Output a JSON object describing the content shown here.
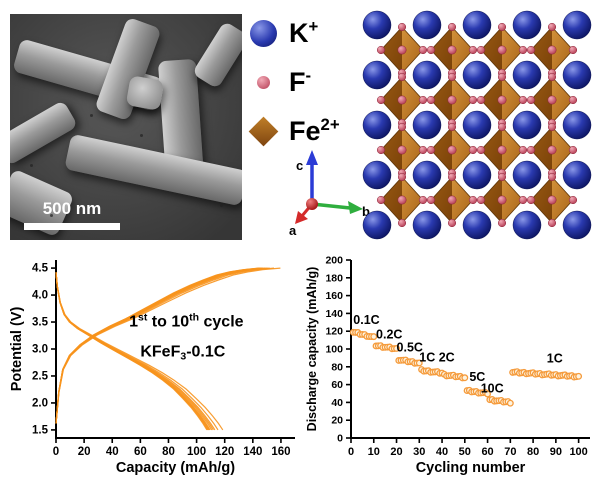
{
  "sem": {
    "scale_label": "500 nm"
  },
  "legend": {
    "items": [
      {
        "name": "potassium-ion",
        "symbol": "K",
        "charge": "+",
        "color": "#1f2d96",
        "shape": "large-sphere"
      },
      {
        "name": "fluoride-ion",
        "symbol": "F",
        "charge": "-",
        "color": "#c96a74",
        "shape": "small-sphere"
      },
      {
        "name": "iron-ion",
        "symbol": "Fe",
        "charge": "2+",
        "color": "#9a5418",
        "shape": "diamond"
      }
    ]
  },
  "axes_indicator": {
    "up": "c",
    "right": "b",
    "front": "a",
    "up_color": "#2b3bd6",
    "right_color": "#2fae3e",
    "front_color": "#d42a2a"
  },
  "crystal": {
    "sphere_color": "#1b2a9b",
    "octahedron_color": "#b06a20",
    "vertex_color": "#d64a66",
    "sphere_rows": 5,
    "sphere_cols": 5,
    "octahedra_rows": 4,
    "octahedra_cols": 4
  },
  "chart_data": [
    {
      "type": "line",
      "title": "",
      "xlabel": "Capacity (mAh/g)",
      "ylabel": "Potential (V)",
      "xlim": [
        0,
        170
      ],
      "ylim": [
        1.35,
        4.65
      ],
      "xticks": [
        "0",
        "20",
        "40",
        "60",
        "80",
        "100",
        "120",
        "140",
        "160"
      ],
      "yticks": [
        "1.5",
        "2.0",
        "2.5",
        "3.0",
        "3.5",
        "4.0",
        "4.5"
      ],
      "line_color": "#f7941d",
      "annotations": [
        {
          "parts": [
            {
              "t": "1"
            },
            {
              "sup": "st"
            },
            {
              "t": " to 10"
            },
            {
              "sup": "th"
            },
            {
              "t": " cycle"
            }
          ],
          "x": 52,
          "y": 3.42
        },
        {
          "parts": [
            {
              "t": "KFeF"
            },
            {
              "sub": "3"
            },
            {
              "t": "-0.1C"
            }
          ],
          "x": 60,
          "y": 2.86
        }
      ],
      "charge_curve": [
        [
          0,
          1.62
        ],
        [
          2,
          2.2
        ],
        [
          5,
          2.62
        ],
        [
          10,
          2.88
        ],
        [
          18,
          3.08
        ],
        [
          28,
          3.26
        ],
        [
          40,
          3.42
        ],
        [
          52,
          3.56
        ],
        [
          64,
          3.72
        ],
        [
          76,
          3.88
        ],
        [
          88,
          4.04
        ],
        [
          100,
          4.18
        ],
        [
          110,
          4.28
        ],
        [
          120,
          4.37
        ],
        [
          130,
          4.43
        ],
        [
          140,
          4.47
        ],
        [
          148,
          4.49
        ],
        [
          152,
          4.5
        ]
      ],
      "discharge_curve": [
        [
          0,
          4.42
        ],
        [
          1,
          4.15
        ],
        [
          3,
          3.86
        ],
        [
          6,
          3.64
        ],
        [
          10,
          3.5
        ],
        [
          16,
          3.38
        ],
        [
          24,
          3.26
        ],
        [
          33,
          3.12
        ],
        [
          43,
          2.98
        ],
        [
          53,
          2.84
        ],
        [
          63,
          2.7
        ],
        [
          72,
          2.56
        ],
        [
          80,
          2.42
        ],
        [
          88,
          2.26
        ],
        [
          95,
          2.08
        ],
        [
          101,
          1.92
        ],
        [
          106,
          1.76
        ],
        [
          110,
          1.62
        ],
        [
          113,
          1.5
        ]
      ],
      "cycle_capacity_scales": [
        1.05,
        1.02,
        1.0,
        0.99,
        0.98,
        0.97,
        0.965,
        0.96,
        0.955,
        0.95
      ]
    },
    {
      "type": "scatter",
      "title": "",
      "xlabel": "Cycling number",
      "ylabel": "Discharge capacity (mAh/g)",
      "xlim": [
        0,
        105
      ],
      "ylim": [
        0,
        200
      ],
      "xticks": [
        "0",
        "10",
        "20",
        "30",
        "40",
        "50",
        "60",
        "70",
        "80",
        "90",
        "100"
      ],
      "yticks": [
        "0",
        "20",
        "40",
        "60",
        "80",
        "100",
        "120",
        "140",
        "160",
        "180",
        "200"
      ],
      "marker_color": "#f59b3c",
      "segments": [
        {
          "rate": "0.1C",
          "cycle_start": 1,
          "cycle_end": 10,
          "capacity_start": 119,
          "capacity_end": 113
        },
        {
          "rate": "0.2C",
          "cycle_start": 11,
          "cycle_end": 20,
          "capacity_start": 104,
          "capacity_end": 100
        },
        {
          "rate": "0.5C",
          "cycle_start": 21,
          "cycle_end": 30,
          "capacity_start": 88,
          "capacity_end": 84
        },
        {
          "rate": "1C",
          "cycle_start": 31,
          "cycle_end": 40,
          "capacity_start": 76,
          "capacity_end": 73
        },
        {
          "rate": "2C",
          "cycle_start": 41,
          "cycle_end": 50,
          "capacity_start": 71,
          "capacity_end": 68
        },
        {
          "rate": "5C",
          "cycle_start": 51,
          "cycle_end": 60,
          "capacity_start": 53,
          "capacity_end": 50
        },
        {
          "rate": "10C",
          "cycle_start": 61,
          "cycle_end": 70,
          "capacity_start": 43,
          "capacity_end": 40
        },
        {
          "rate": "1C",
          "cycle_start": 71,
          "cycle_end": 100,
          "capacity_start": 74,
          "capacity_end": 69
        }
      ],
      "rate_labels": [
        {
          "text": "0.1C",
          "x": 1,
          "y": 128
        },
        {
          "text": "0.2C",
          "x": 11,
          "y": 112
        },
        {
          "text": "0.5C",
          "x": 20,
          "y": 97
        },
        {
          "text": "1C 2C",
          "x": 30,
          "y": 86
        },
        {
          "text": "5C",
          "x": 52,
          "y": 64
        },
        {
          "text": "10C",
          "x": 57,
          "y": 51
        },
        {
          "text": "1C",
          "x": 86,
          "y": 85
        }
      ]
    }
  ]
}
